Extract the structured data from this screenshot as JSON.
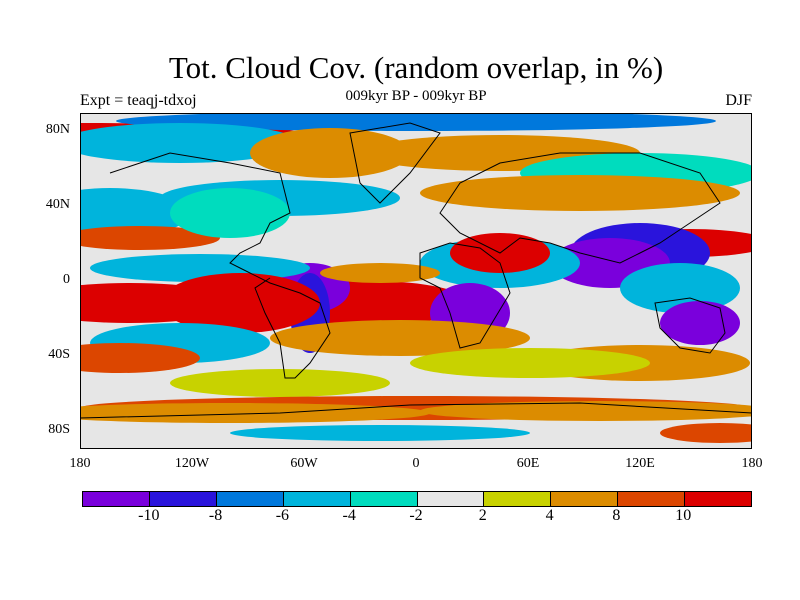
{
  "chart_data": {
    "type": "heatmap",
    "title": "Tot. Cloud Cov. (random overlap, in %)",
    "subtitle": "009kyr BP - 009kyr BP",
    "left_label": "Expt = teaqj-tdxoj",
    "right_label": "DJF",
    "x_ticks": [
      "180",
      "120W",
      "60W",
      "0",
      "60E",
      "120E",
      "180"
    ],
    "y_ticks": [
      "80N",
      "40N",
      "0",
      "40S",
      "80S"
    ],
    "xlim": [
      -180,
      180
    ],
    "ylim": [
      -90,
      90
    ],
    "colorbar": {
      "levels": [
        "-10",
        "-8",
        "-6",
        "-4",
        "-2",
        "2",
        "4",
        "8",
        "10"
      ],
      "colors": [
        "#7a00dc",
        "#2a14dc",
        "#0078dc",
        "#00b4dc",
        "#00dcbe",
        "#e6e6e6",
        "#c8d200",
        "#dc8c00",
        "#dc4600",
        "#dc0000"
      ]
    }
  }
}
